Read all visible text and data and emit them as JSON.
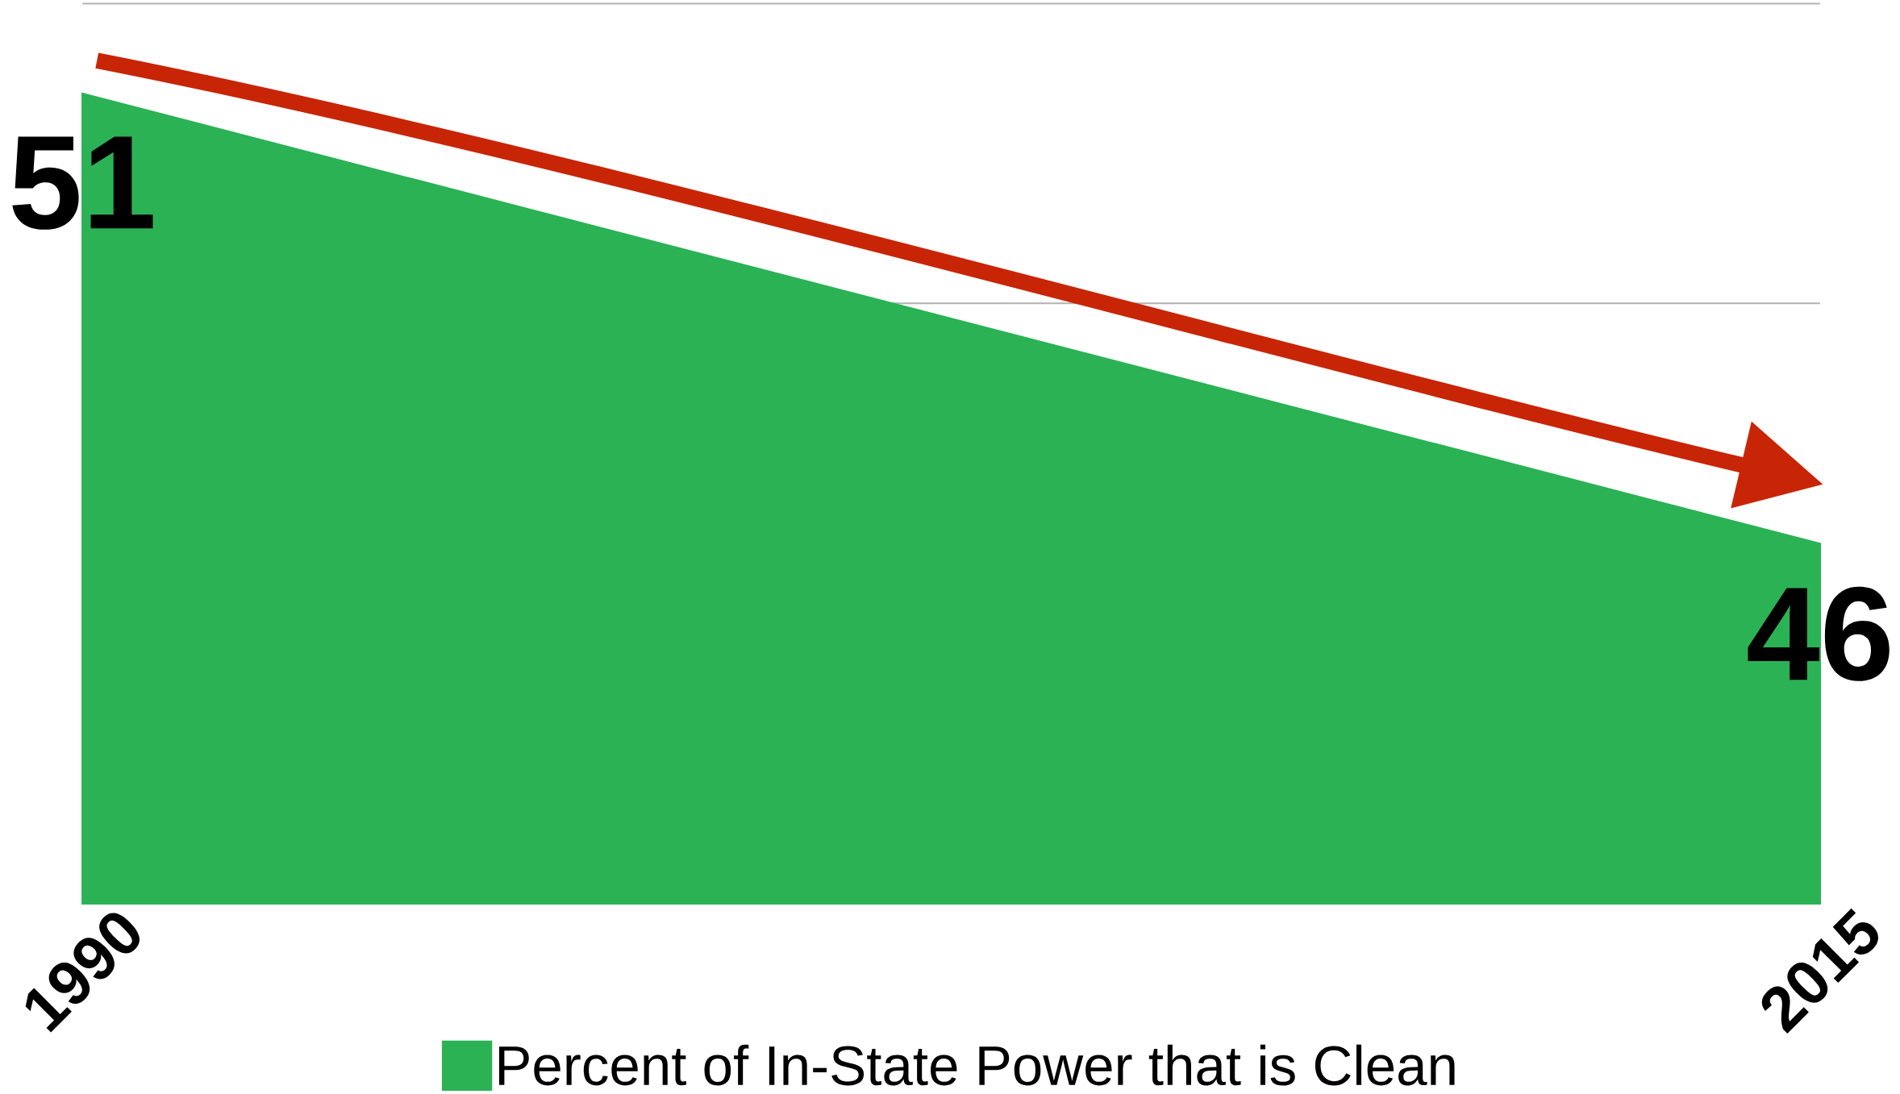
{
  "chart_data": {
    "type": "area",
    "x": [
      1990,
      2015
    ],
    "series": [
      {
        "name": "Percent of In-State Power that is Clean",
        "color": "#2bb255",
        "values": [
          51,
          46
        ],
        "value_labels": [
          "51",
          "46"
        ]
      }
    ],
    "xlim": [
      1990,
      2015
    ],
    "xticks": [
      1990,
      2015
    ],
    "ylim": [
      42,
      52
    ],
    "yticks": [
      {
        "value": 42,
        "label": null
      },
      {
        "value": 45.33,
        "label": null
      },
      {
        "value": 48.67,
        "label": null
      },
      {
        "value": 52,
        "label": null
      }
    ],
    "tick_labels": "x",
    "grid": "y",
    "legend": "bottom"
  }
}
